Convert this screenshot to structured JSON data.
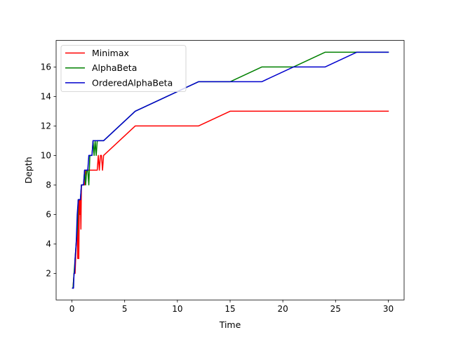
{
  "chart_data": {
    "type": "line",
    "title": "",
    "xlabel": "Time",
    "ylabel": "Depth",
    "xlim": [
      -1.5,
      31.5
    ],
    "ylim": [
      0.2,
      17.8
    ],
    "xticks": [
      0,
      5,
      10,
      15,
      20,
      25,
      30
    ],
    "yticks": [
      2,
      4,
      6,
      8,
      10,
      12,
      14,
      16
    ],
    "xtick_labels": [
      "0",
      "5",
      "10",
      "15",
      "20",
      "25",
      "30"
    ],
    "ytick_labels": [
      "2",
      "4",
      "6",
      "8",
      "10",
      "12",
      "14",
      "16"
    ],
    "grid": false,
    "legend_position": "top-left",
    "series": [
      {
        "name": "Minimax",
        "color": "#ff0000",
        "x": [
          0.1,
          0.2,
          0.3,
          0.4,
          0.5,
          0.55,
          0.6,
          0.65,
          0.7,
          0.75,
          0.8,
          0.85,
          0.9,
          1.0,
          1.1,
          1.2,
          1.3,
          1.4,
          1.5,
          1.6,
          1.7,
          2.4,
          2.5,
          2.6,
          2.7,
          2.8,
          2.9,
          3.0,
          6,
          9,
          12,
          15,
          18,
          21,
          24,
          27,
          30
        ],
        "y": [
          1,
          2,
          2,
          4,
          5,
          3,
          7,
          3,
          7,
          6,
          7,
          5,
          8,
          8,
          8,
          8,
          9,
          9,
          9,
          9,
          9,
          9,
          10,
          9,
          10,
          10,
          9,
          10,
          12,
          12,
          12,
          13,
          13,
          13,
          13,
          13,
          13
        ]
      },
      {
        "name": "AlphaBeta",
        "color": "#008000",
        "x": [
          0.1,
          0.2,
          0.3,
          0.4,
          0.5,
          0.6,
          0.7,
          0.8,
          0.9,
          1.0,
          1.1,
          1.2,
          1.3,
          1.4,
          1.5,
          1.6,
          1.7,
          1.8,
          1.9,
          2.0,
          2.1,
          2.2,
          2.3,
          2.4,
          2.5,
          2.6,
          3,
          6,
          9,
          12,
          15,
          18,
          21,
          24,
          27,
          30
        ],
        "y": [
          1,
          2,
          3,
          4,
          5,
          7,
          7,
          7,
          8,
          8,
          8,
          9,
          8,
          9,
          9,
          8,
          10,
          10,
          10,
          11,
          10,
          11,
          10,
          11,
          11,
          11,
          11,
          13,
          14,
          15,
          15,
          16,
          16,
          17,
          17,
          17
        ]
      },
      {
        "name": "OrderedAlphaBeta",
        "color": "#0000cd",
        "x": [
          0.05,
          0.1,
          0.15,
          0.2,
          0.25,
          0.3,
          0.4,
          0.5,
          0.6,
          0.7,
          0.8,
          0.9,
          1.0,
          1.1,
          1.2,
          1.3,
          1.4,
          1.5,
          1.6,
          1.7,
          1.8,
          1.9,
          2.0,
          2.1,
          2.2,
          3,
          6,
          9,
          12,
          15,
          18,
          21,
          24,
          27,
          30
        ],
        "y": [
          1,
          1,
          1,
          2,
          2,
          3,
          4,
          6,
          7,
          7,
          7,
          8,
          8,
          8,
          9,
          9,
          9,
          9,
          10,
          10,
          10,
          10,
          11,
          11,
          11,
          11,
          13,
          14,
          15,
          15,
          15,
          16,
          16,
          17,
          17
        ]
      }
    ]
  }
}
